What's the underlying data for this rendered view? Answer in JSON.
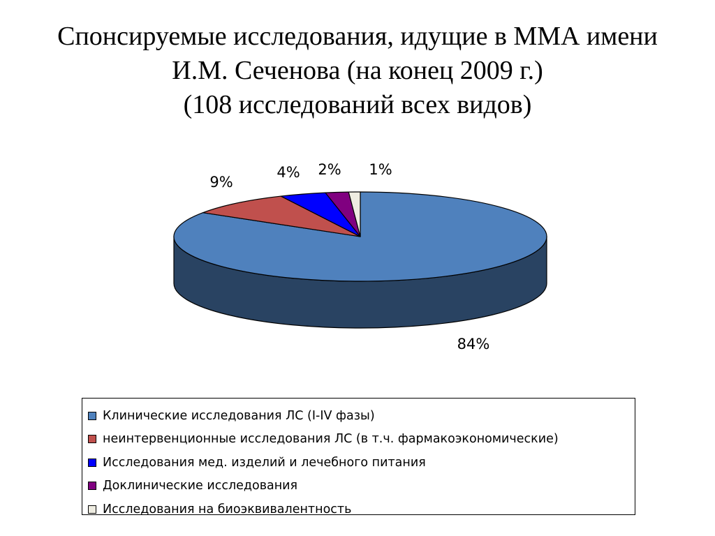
{
  "title": {
    "line1": "Спонсируемые исследования, идущие в ММА имени",
    "line2": "И.М. Сеченова (на конец 2009 г.)",
    "line3": "(108 исследований всех видов)"
  },
  "chart_data": {
    "type": "pie",
    "style": "3d",
    "categories": [
      "Клинические исследования ЛС (I-IV фазы)",
      "неинтервенционные исследования ЛС (в т.ч. фармакоэкономические)",
      "Исследования мед. изделий и лечебного питания",
      "Доклинические исследования",
      "Исследования на биоэквивалентность"
    ],
    "values": [
      84,
      9,
      4,
      2,
      1
    ],
    "data_labels": [
      "84%",
      "9%",
      "4%",
      "2%",
      "1%"
    ],
    "colors": [
      "#4F81BD",
      "#C0504D",
      "#0000FF",
      "#800080",
      "#EEECE1"
    ],
    "legend_position": "bottom",
    "unit": "%"
  }
}
